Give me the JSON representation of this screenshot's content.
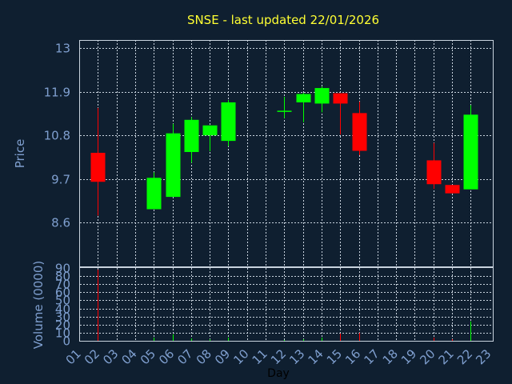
{
  "chart_data": {
    "type": "candlestick",
    "title": "SNSE - last updated 22/01/2026",
    "xlabel": "Day",
    "ylabel_price": "Price",
    "ylabel_volume": "Volume (0000)",
    "x_tick_labels": [
      "01",
      "02",
      "03",
      "04",
      "05",
      "06",
      "07",
      "08",
      "09",
      "10",
      "11",
      "12",
      "13",
      "14",
      "15",
      "16",
      "17",
      "18",
      "19",
      "20",
      "21",
      "22",
      "23"
    ],
    "price_ticks": [
      13,
      11.9,
      10.8,
      9.7,
      8.6
    ],
    "price_tick_labels": [
      "13",
      "11.9",
      "10.8",
      "9.7",
      "8.6"
    ],
    "price_ylim": [
      7.5,
      13.2
    ],
    "volume_ticks": [
      0,
      10,
      20,
      30,
      40,
      50,
      60,
      70,
      80,
      90
    ],
    "volume_tick_labels": [
      "0",
      "10",
      "20",
      "30",
      "40",
      "50",
      "60",
      "70",
      "80",
      "90"
    ],
    "volume_ylim": [
      0,
      90
    ],
    "grid": true,
    "colors": {
      "up": "#00ff00",
      "down": "#ff0000",
      "background": "#0f1f30",
      "title": "#ffff33",
      "tick": "#7f9fcf",
      "grid": "#c9d3de"
    },
    "candles": [
      {
        "day": "02",
        "open": 10.36,
        "high": 11.49,
        "low": 8.78,
        "close": 9.63,
        "volume": 88
      },
      {
        "day": "05",
        "open": 8.94,
        "high": 9.87,
        "low": 8.94,
        "close": 9.73,
        "volume": 4
      },
      {
        "day": "06",
        "open": 9.25,
        "high": 11.09,
        "low": 9.25,
        "close": 10.85,
        "volume": 8
      },
      {
        "day": "07",
        "open": 10.38,
        "high": 11.26,
        "low": 10.11,
        "close": 11.19,
        "volume": 3
      },
      {
        "day": "08",
        "open": 10.8,
        "high": 11.05,
        "low": 10.4,
        "close": 11.05,
        "volume": 2
      },
      {
        "day": "09",
        "open": 10.66,
        "high": 11.69,
        "low": 10.53,
        "close": 11.63,
        "volume": 4
      },
      {
        "day": "12",
        "open": 11.4,
        "high": 11.77,
        "low": 11.23,
        "close": 11.42,
        "volume": 1
      },
      {
        "day": "13",
        "open": 11.63,
        "high": 11.87,
        "low": 11.13,
        "close": 11.84,
        "volume": 2
      },
      {
        "day": "14",
        "open": 11.6,
        "high": 12.03,
        "low": 11.38,
        "close": 11.99,
        "volume": 4
      },
      {
        "day": "15",
        "open": 11.86,
        "high": 11.86,
        "low": 10.82,
        "close": 11.6,
        "volume": 9
      },
      {
        "day": "16",
        "open": 11.36,
        "high": 11.65,
        "low": 10.3,
        "close": 10.41,
        "volume": 10
      },
      {
        "day": "20",
        "open": 10.17,
        "high": 10.61,
        "low": 9.45,
        "close": 9.57,
        "volume": 4
      },
      {
        "day": "21",
        "open": 9.55,
        "high": 9.55,
        "low": 9.34,
        "close": 9.34,
        "volume": 2
      },
      {
        "day": "22",
        "open": 9.44,
        "high": 11.56,
        "low": 9.44,
        "close": 11.32,
        "volume": 24
      }
    ]
  }
}
